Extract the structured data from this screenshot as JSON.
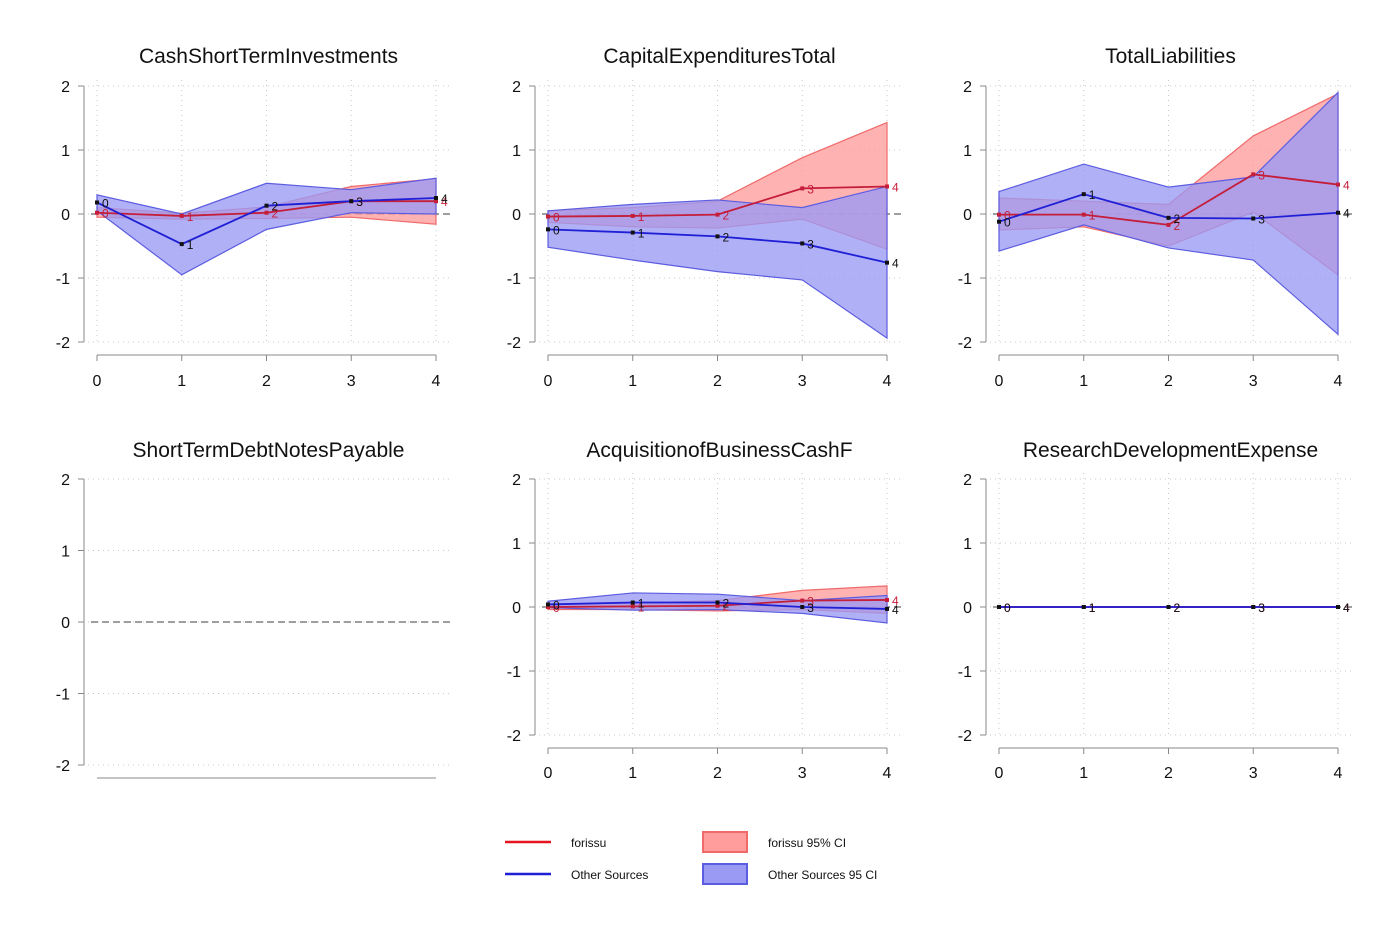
{
  "colors": {
    "forissu": "#e8141e",
    "forissu_line": "#c41e3a",
    "forissu_fill": "#ff9c9c",
    "forissu_stroke": "#f06a6a",
    "other": "#1f1fd6",
    "other_fill": "#9a9af5",
    "other_stroke": "#5c5ce0"
  },
  "legend": {
    "placement": "bottom-center",
    "items": [
      {
        "label": "forissu",
        "kind": "line",
        "series": "forissu"
      },
      {
        "label": "Other Sources",
        "kind": "line",
        "series": "other"
      },
      {
        "label": "forissu 95% CI",
        "kind": "band",
        "series": "forissu"
      },
      {
        "label": "Other Sources 95 CI",
        "kind": "band",
        "series": "other"
      }
    ]
  },
  "chart_data": [
    {
      "type": "line",
      "title": "CashShortTermInvestments",
      "x": [
        0,
        1,
        2,
        3,
        4
      ],
      "ylim": [
        -2,
        2
      ],
      "yticks": [
        -2,
        -1,
        0,
        1,
        2
      ],
      "grid": true,
      "zero_line": true,
      "series": [
        {
          "name": "forissu",
          "values": [
            0.02,
            -0.03,
            0.02,
            0.2,
            0.2
          ],
          "ci_low": [
            -0.05,
            -0.08,
            -0.07,
            -0.05,
            -0.16
          ],
          "ci_high": [
            0.1,
            0.01,
            0.11,
            0.43,
            0.55
          ]
        },
        {
          "name": "Other Sources",
          "values": [
            0.18,
            -0.47,
            0.13,
            0.2,
            0.25
          ],
          "ci_low": [
            0.05,
            -0.95,
            -0.24,
            0.02,
            0.0
          ],
          "ci_high": [
            0.3,
            0.0,
            0.48,
            0.38,
            0.56
          ]
        }
      ]
    },
    {
      "type": "line",
      "title": "CapitalExpendituresTotal",
      "x": [
        0,
        1,
        2,
        3,
        4
      ],
      "ylim": [
        -2,
        2
      ],
      "yticks": [
        -2,
        -1,
        0,
        1,
        2
      ],
      "grid": true,
      "zero_line": true,
      "series": [
        {
          "name": "forissu",
          "values": [
            -0.04,
            -0.03,
            -0.01,
            0.4,
            0.43
          ],
          "ci_low": [
            -0.13,
            -0.2,
            -0.22,
            -0.08,
            -0.55
          ],
          "ci_high": [
            0.05,
            0.1,
            0.2,
            0.88,
            1.43
          ]
        },
        {
          "name": "Other Sources",
          "values": [
            -0.24,
            -0.29,
            -0.35,
            -0.46,
            -0.76
          ],
          "ci_low": [
            -0.52,
            -0.72,
            -0.9,
            -1.03,
            -1.94
          ],
          "ci_high": [
            0.05,
            0.15,
            0.22,
            0.1,
            0.43
          ]
        }
      ]
    },
    {
      "type": "line",
      "title": "TotalLiabilities",
      "x": [
        0,
        1,
        2,
        3,
        4
      ],
      "ylim": [
        -2,
        2
      ],
      "yticks": [
        -2,
        -1,
        0,
        1,
        2
      ],
      "grid": true,
      "zero_line": true,
      "series": [
        {
          "name": "forissu",
          "values": [
            -0.01,
            -0.01,
            -0.17,
            0.62,
            0.46
          ],
          "ci_low": [
            -0.25,
            -0.2,
            -0.5,
            0.03,
            -0.95
          ],
          "ci_high": [
            0.25,
            0.2,
            0.15,
            1.22,
            1.88
          ]
        },
        {
          "name": "Other Sources",
          "values": [
            -0.12,
            0.31,
            -0.06,
            -0.07,
            0.02
          ],
          "ci_low": [
            -0.58,
            -0.17,
            -0.53,
            -0.72,
            -1.88
          ],
          "ci_high": [
            0.35,
            0.78,
            0.42,
            0.58,
            1.9
          ]
        }
      ]
    },
    {
      "type": "line",
      "title": "ShortTermDebtNotesPayable",
      "x": [],
      "ylim": [
        -2,
        2
      ],
      "yticks": [
        -2,
        -1,
        0,
        1,
        2
      ],
      "grid": true,
      "zero_line": true,
      "empty": true,
      "series": []
    },
    {
      "type": "line",
      "title": "AcquisitionofBusinessCashF",
      "x": [
        0,
        1,
        2,
        3,
        4
      ],
      "ylim": [
        -2,
        2
      ],
      "yticks": [
        -2,
        -1,
        0,
        1,
        2
      ],
      "grid": true,
      "zero_line": true,
      "series": [
        {
          "name": "forissu",
          "values": [
            0.0,
            0.01,
            0.02,
            0.1,
            0.11
          ],
          "ci_low": [
            -0.04,
            -0.04,
            -0.06,
            -0.04,
            -0.1
          ],
          "ci_high": [
            0.04,
            0.06,
            0.1,
            0.26,
            0.33
          ]
        },
        {
          "name": "Other Sources",
          "values": [
            0.04,
            0.07,
            0.07,
            0.0,
            -0.03
          ],
          "ci_low": [
            -0.01,
            -0.05,
            -0.04,
            -0.1,
            -0.25
          ],
          "ci_high": [
            0.09,
            0.22,
            0.2,
            0.1,
            0.18
          ]
        }
      ]
    },
    {
      "type": "line",
      "title": "ResearchDevelopmentExpense",
      "x": [
        0,
        1,
        2,
        3,
        4
      ],
      "ylim": [
        -2,
        2
      ],
      "yticks": [
        -2,
        -1,
        0,
        1,
        2
      ],
      "grid": true,
      "zero_line": true,
      "series": [
        {
          "name": "forissu",
          "values": [
            0,
            0,
            0,
            0,
            0
          ],
          "ci_low": [
            0,
            0,
            0,
            0,
            0
          ],
          "ci_high": [
            0,
            0,
            0,
            0,
            0
          ]
        },
        {
          "name": "Other Sources",
          "values": [
            0,
            0,
            0,
            0,
            0
          ],
          "ci_low": [
            0,
            0,
            0,
            0,
            0
          ],
          "ci_high": [
            0,
            0,
            0,
            0,
            0
          ]
        }
      ]
    }
  ]
}
